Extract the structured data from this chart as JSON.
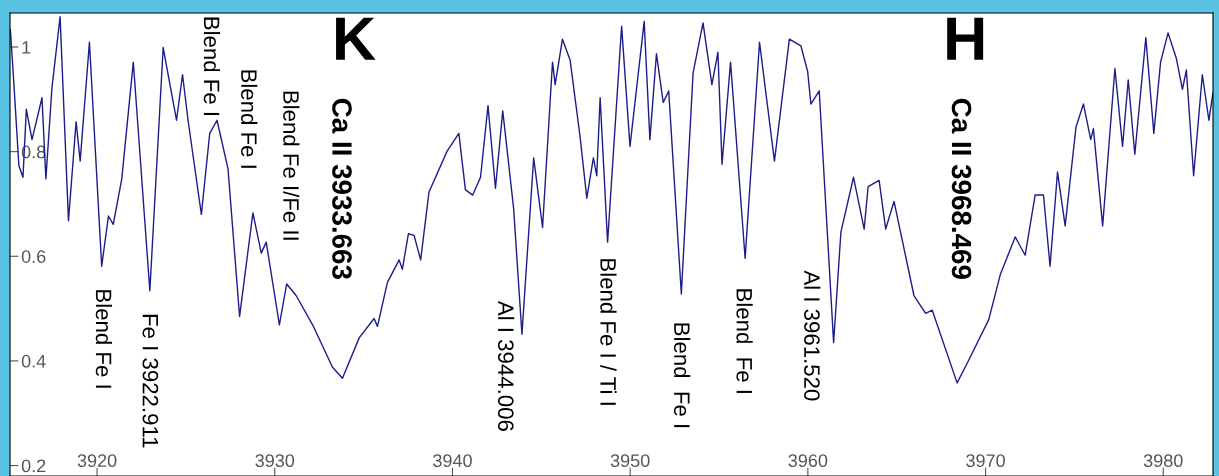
{
  "chart_data": {
    "type": "line",
    "x": [
      3915.12,
      3915.3,
      3915.6,
      3915.83,
      3916.02,
      3916.34,
      3916.9,
      3917.12,
      3917.46,
      3917.92,
      3918.39,
      3918.82,
      3919.05,
      3919.57,
      3920.26,
      3920.64,
      3920.91,
      3921.39,
      3922.04,
      3922.97,
      3923.72,
      3924.47,
      3924.81,
      3925.12,
      3925.87,
      3926.34,
      3926.75,
      3927.37,
      3928.02,
      3928.77,
      3929.24,
      3929.52,
      3930.26,
      3930.67,
      3931.2,
      3932.13,
      3933.25,
      3933.81,
      3934.75,
      3935.59,
      3935.78,
      3936.34,
      3937.0,
      3937.18,
      3937.52,
      3937.84,
      3938.21,
      3938.68,
      3939.7,
      3940.36,
      3940.73,
      3941.14,
      3941.58,
      3942.0,
      3942.42,
      3942.83,
      3943.44,
      3943.91,
      3944.57,
      3945.07,
      3945.63,
      3945.78,
      3946.19,
      3946.62,
      3947.18,
      3947.56,
      3947.93,
      3948.12,
      3948.31,
      3948.73,
      3949.52,
      3949.99,
      3950.79,
      3951.11,
      3951.48,
      3951.86,
      3952.17,
      3952.88,
      3953.54,
      3954.1,
      3954.6,
      3954.94,
      3955.17,
      3955.65,
      3956.47,
      3957.28,
      3958.12,
      3958.96,
      3959.61,
      3959.99,
      3960.17,
      3960.64,
      3961.45,
      3961.86,
      3962.57,
      3963.17,
      3963.39,
      3964.01,
      3964.38,
      3964.85,
      3965.97,
      3966.63,
      3967.0,
      3968.4,
      3968.96,
      3970.18,
      3970.83,
      3971.67,
      3972.23,
      3972.79,
      3973.26,
      3973.63,
      3974.05,
      3974.48,
      3975.09,
      3975.51,
      3975.92,
      3976.07,
      3976.59,
      3977.28,
      3977.71,
      3978.03,
      3978.4,
      3979.02,
      3979.47,
      3979.85,
      3980.27,
      3980.74,
      3981.08,
      3981.3,
      3981.71,
      3982.2,
      3982.57,
      3982.8
    ],
    "series": [
      {
        "color": "#1c1c8a",
        "values": [
          1.033,
          0.94,
          0.773,
          0.751,
          0.881,
          0.823,
          0.903,
          0.748,
          0.922,
          1.058,
          0.668,
          0.857,
          0.782,
          1.009,
          0.581,
          0.677,
          0.661,
          0.748,
          0.971,
          0.534,
          0.999,
          0.86,
          0.947,
          0.86,
          0.68,
          0.835,
          0.86,
          0.767,
          0.485,
          0.683,
          0.606,
          0.627,
          0.469,
          0.547,
          0.525,
          0.469,
          0.388,
          0.367,
          0.444,
          0.481,
          0.466,
          0.55,
          0.593,
          0.575,
          0.643,
          0.64,
          0.593,
          0.723,
          0.801,
          0.835,
          0.727,
          0.717,
          0.751,
          0.888,
          0.73,
          0.878,
          0.692,
          0.451,
          0.788,
          0.655,
          0.971,
          0.928,
          1.015,
          0.975,
          0.829,
          0.711,
          0.788,
          0.754,
          0.903,
          0.627,
          1.04,
          0.81,
          1.049,
          0.823,
          0.987,
          0.894,
          0.916,
          0.528,
          0.95,
          1.046,
          0.928,
          0.99,
          0.776,
          0.971,
          0.596,
          1.009,
          0.782,
          1.015,
          1.002,
          0.953,
          0.891,
          0.916,
          0.435,
          0.646,
          0.751,
          0.652,
          0.733,
          0.745,
          0.652,
          0.705,
          0.525,
          0.491,
          0.497,
          0.358,
          0.395,
          0.479,
          0.565,
          0.637,
          0.602,
          0.717,
          0.717,
          0.581,
          0.761,
          0.658,
          0.847,
          0.891,
          0.823,
          0.844,
          0.658,
          0.959,
          0.81,
          0.937,
          0.795,
          1.018,
          0.835,
          0.971,
          1.027,
          0.978,
          0.919,
          0.956,
          0.754,
          0.947,
          0.86,
          0.913
        ]
      }
    ],
    "xlim": [
      3915.1,
      3982.8
    ],
    "ylim": [
      0.18,
      1.065
    ],
    "xticks": [
      3920,
      3930,
      3940,
      3950,
      3960,
      3970,
      3980
    ],
    "yticks": [
      0.2,
      0.4,
      0.6,
      0.8,
      1
    ],
    "grid": false,
    "annotations": [
      "K",
      "H",
      "Ca II 3933.663",
      "Ca II 3968.469",
      "Blend Fe I",
      "Blend Fe I",
      "Blend Fe I/Fe II",
      {
        "text": "Blend Fe I",
        "x": 3920.26,
        "y": 0.581
      },
      {
        "text": "Fe I 3922.911",
        "x": 3922.97,
        "y": 0.534
      },
      {
        "text": "Al I 3944.006",
        "x": 3943.91,
        "y": 0.451
      },
      {
        "text": "Blend Fe I / Ti I",
        "x": 3948.73,
        "y": 0.627
      },
      {
        "text": "Blend  Fe I",
        "x": 3952.88,
        "y": 0.528
      },
      {
        "text": "Blend  Fe I",
        "x": 3956.47,
        "y": 0.596
      },
      {
        "text": "Al I 3961.520",
        "x": 3961.45,
        "y": 0.435
      }
    ]
  }
}
